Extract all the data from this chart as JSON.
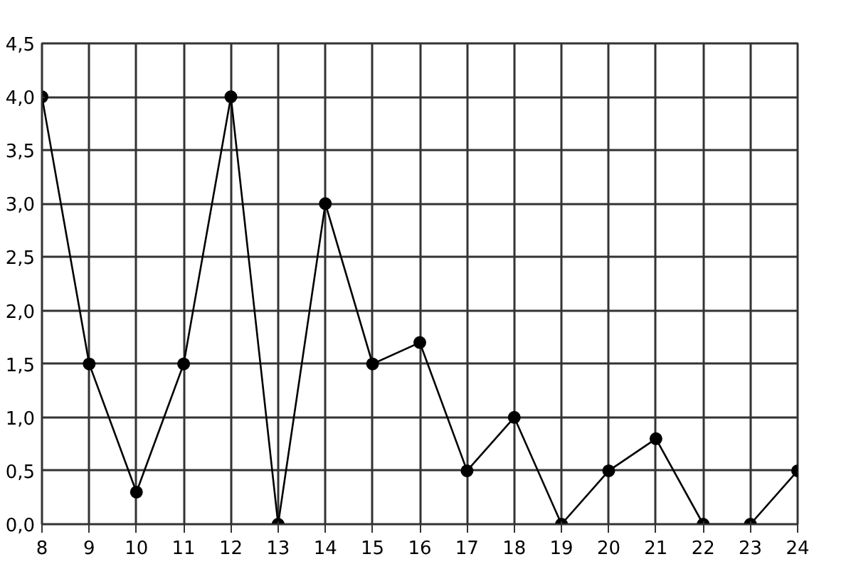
{
  "chart_data": {
    "type": "line",
    "x": [
      8,
      9,
      10,
      11,
      12,
      13,
      14,
      15,
      16,
      17,
      18,
      19,
      20,
      21,
      22,
      23,
      24
    ],
    "series": [
      {
        "color": "#000000",
        "values": [
          4.0,
          1.5,
          0.3,
          1.5,
          4.0,
          0.0,
          3.0,
          1.5,
          1.7,
          0.5,
          1.0,
          0.0,
          0.5,
          0.8,
          0.0,
          0.0,
          0.5
        ]
      }
    ],
    "xlim": [
      8,
      24
    ],
    "xticks": [
      8,
      9,
      10,
      11,
      12,
      13,
      14,
      15,
      16,
      17,
      18,
      19,
      20,
      21,
      22,
      23,
      24
    ],
    "ylim": [
      0,
      4.5
    ],
    "yticks": [
      {
        "value": 0,
        "label": "0,0"
      },
      {
        "value": 0.5,
        "label": "0,5"
      },
      {
        "value": 1,
        "label": "1,0"
      },
      {
        "value": 1.5,
        "label": "1,5"
      },
      {
        "value": 2,
        "label": "2,0"
      },
      {
        "value": 2.5,
        "label": "2,5"
      },
      {
        "value": 3,
        "label": "3,0"
      },
      {
        "value": 3.5,
        "label": "3,5"
      },
      {
        "value": 4,
        "label": "4,0"
      },
      {
        "value": 4.5,
        "label": "4,5"
      }
    ],
    "grid": true,
    "marker": "circle",
    "line_style": "solid"
  }
}
